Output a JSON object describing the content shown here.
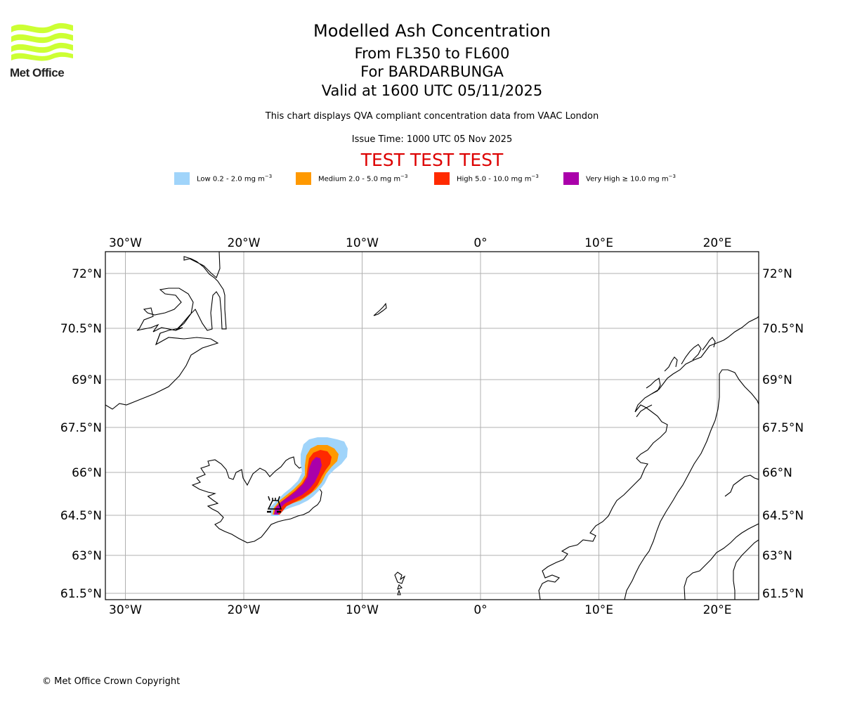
{
  "logo": {
    "text": "Met Office",
    "color": "#ccff33"
  },
  "header": {
    "title": "Modelled Ash Concentration",
    "levels": "From FL350 to FL600",
    "volcano": "For BARDARBUNGA",
    "valid": "Valid at 1600 UTC 05/11/2025",
    "description": "This chart displays QVA compliant concentration data from VAAC London",
    "issue_time": "Issue Time: 1000 UTC 05 Nov 2025",
    "test_banner": "TEST TEST TEST"
  },
  "legend": [
    {
      "label": "Low 0.2 - 2.0 mg m",
      "unit_exp": "−3",
      "color": "#a0d4fa"
    },
    {
      "label": "Medium 2.0 - 5.0 mg m",
      "unit_exp": "−3",
      "color": "#ff9900"
    },
    {
      "label": "High 5.0 - 10.0 mg m",
      "unit_exp": "−3",
      "color": "#ff2a00"
    },
    {
      "label": "Very High  ≥  10.0 mg m",
      "unit_exp": "−3",
      "color": "#aa00aa"
    }
  ],
  "map": {
    "extent": {
      "lon": [
        -31.7,
        23.5
      ],
      "lat": [
        61.3,
        72.6
      ]
    },
    "lon_ticks": [
      {
        "value": -30,
        "label": "30°W"
      },
      {
        "value": -20,
        "label": "20°W"
      },
      {
        "value": -10,
        "label": "10°W"
      },
      {
        "value": 0,
        "label": "0°"
      },
      {
        "value": 10,
        "label": "10°E"
      },
      {
        "value": 20,
        "label": "20°E"
      }
    ],
    "lat_ticks": [
      {
        "value": 72,
        "label": "72°N"
      },
      {
        "value": 70.5,
        "label": "70.5°N"
      },
      {
        "value": 69,
        "label": "69°N"
      },
      {
        "value": 67.5,
        "label": "67.5°N"
      },
      {
        "value": 66,
        "label": "66°N"
      },
      {
        "value": 64.5,
        "label": "64.5°N"
      },
      {
        "value": 63,
        "label": "63°N"
      },
      {
        "value": 61.5,
        "label": "61.5°N"
      }
    ],
    "volcano_marker": {
      "name": "BARDARBUNGA",
      "icon": "volcano-icon"
    },
    "gridline_color": "#b0b0b0"
  },
  "footer": {
    "copyright": "© Met Office Crown Copyright"
  }
}
